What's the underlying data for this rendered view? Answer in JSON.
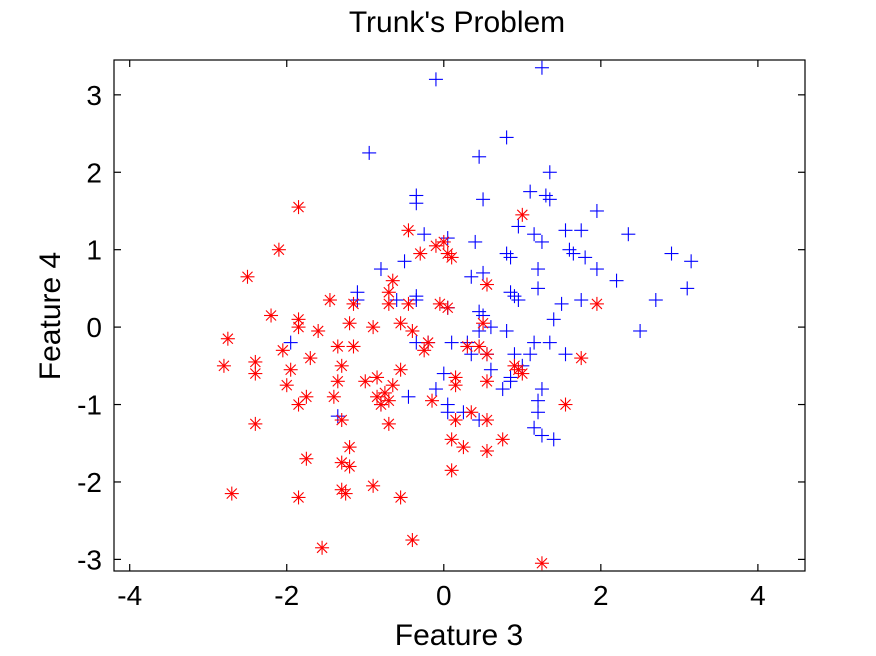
{
  "chart_data": {
    "type": "scatter",
    "title": "Trunk's Problem",
    "xlabel": "Feature 3",
    "ylabel": "Feature 4",
    "xlim": [
      -4.2,
      4.6
    ],
    "ylim": [
      -3.15,
      3.45
    ],
    "xticks": [
      -4,
      -2,
      0,
      2,
      4
    ],
    "xtick_labels": [
      "-4",
      "-2",
      "0",
      "2",
      "4"
    ],
    "yticks": [
      -3,
      -2,
      -1,
      0,
      1,
      2,
      3
    ],
    "ytick_labels": [
      "-3",
      "-2",
      "-1",
      "0",
      "1",
      "2",
      "3"
    ],
    "grid": false,
    "box": true,
    "series": [
      {
        "marker": "plus",
        "color": "#0000ff",
        "points": [
          [
            -0.1,
            3.2
          ],
          [
            1.25,
            3.35
          ],
          [
            -0.95,
            2.25
          ],
          [
            0.8,
            2.45
          ],
          [
            0.45,
            2.2
          ],
          [
            1.35,
            2.0
          ],
          [
            1.1,
            1.75
          ],
          [
            1.3,
            1.7
          ],
          [
            1.35,
            1.65
          ],
          [
            0.5,
            1.65
          ],
          [
            1.95,
            1.5
          ],
          [
            -0.35,
            1.7
          ],
          [
            -0.35,
            1.6
          ],
          [
            0.95,
            1.3
          ],
          [
            1.55,
            1.25
          ],
          [
            1.75,
            1.25
          ],
          [
            2.35,
            1.2
          ],
          [
            1.15,
            1.2
          ],
          [
            -0.25,
            1.2
          ],
          [
            0.05,
            1.15
          ],
          [
            0.4,
            1.1
          ],
          [
            1.25,
            1.1
          ],
          [
            1.6,
            1.0
          ],
          [
            1.65,
            0.95
          ],
          [
            0.8,
            0.95
          ],
          [
            0.85,
            0.9
          ],
          [
            1.8,
            0.9
          ],
          [
            2.9,
            0.95
          ],
          [
            3.15,
            0.85
          ],
          [
            -0.5,
            0.85
          ],
          [
            1.2,
            0.75
          ],
          [
            -0.8,
            0.75
          ],
          [
            0.5,
            0.7
          ],
          [
            0.35,
            0.65
          ],
          [
            1.95,
            0.75
          ],
          [
            2.2,
            0.6
          ],
          [
            1.2,
            0.5
          ],
          [
            3.1,
            0.5
          ],
          [
            -0.35,
            0.4
          ],
          [
            0.9,
            0.4
          ],
          [
            0.95,
            0.35
          ],
          [
            1.75,
            0.35
          ],
          [
            2.7,
            0.35
          ],
          [
            -1.1,
            0.35
          ],
          [
            -0.6,
            0.35
          ],
          [
            0.85,
            0.45
          ],
          [
            1.5,
            0.3
          ],
          [
            1.4,
            0.1
          ],
          [
            0.5,
            0.15
          ],
          [
            0.45,
            0.2
          ],
          [
            0.6,
            0.0
          ],
          [
            -0.35,
            0.35
          ],
          [
            0.05,
            0.25
          ],
          [
            0.45,
            -0.05
          ],
          [
            0.3,
            -0.2
          ],
          [
            1.15,
            -0.2
          ],
          [
            1.35,
            -0.2
          ],
          [
            0.55,
            -0.35
          ],
          [
            0.9,
            -0.35
          ],
          [
            1.0,
            -0.5
          ],
          [
            1.55,
            -0.35
          ],
          [
            0.1,
            -0.2
          ],
          [
            -0.35,
            -0.2
          ],
          [
            -0.2,
            -0.2
          ],
          [
            2.5,
            -0.05
          ],
          [
            1.1,
            -0.35
          ],
          [
            0.35,
            -0.35
          ],
          [
            0.6,
            -0.55
          ],
          [
            0.85,
            -0.7
          ],
          [
            1.25,
            -0.8
          ],
          [
            0.85,
            -0.65
          ],
          [
            0.0,
            -0.6
          ],
          [
            0.75,
            -0.8
          ],
          [
            -0.1,
            -0.8
          ],
          [
            0.05,
            -1.0
          ],
          [
            -0.8,
            -1.0
          ],
          [
            -0.45,
            -0.9
          ],
          [
            1.2,
            -0.95
          ],
          [
            1.2,
            -1.1
          ],
          [
            0.05,
            -1.1
          ],
          [
            0.25,
            -1.1
          ],
          [
            0.45,
            -1.2
          ],
          [
            1.15,
            -1.3
          ],
          [
            1.25,
            -1.4
          ],
          [
            -1.35,
            -1.15
          ],
          [
            1.4,
            -1.45
          ],
          [
            -1.95,
            -0.2
          ],
          [
            -1.1,
            0.45
          ],
          [
            0.8,
            -0.05
          ]
        ]
      },
      {
        "marker": "asterisk",
        "color": "#ff0000",
        "points": [
          [
            -1.85,
            1.55
          ],
          [
            -2.1,
            1.0
          ],
          [
            -2.5,
            0.65
          ],
          [
            -0.45,
            1.25
          ],
          [
            0.0,
            1.1
          ],
          [
            -0.1,
            1.05
          ],
          [
            -0.3,
            0.95
          ],
          [
            0.1,
            0.9
          ],
          [
            1.0,
            1.45
          ],
          [
            0.55,
            0.55
          ],
          [
            -0.65,
            0.6
          ],
          [
            -0.7,
            0.45
          ],
          [
            -2.2,
            0.15
          ],
          [
            -1.85,
            0.1
          ],
          [
            -1.45,
            0.35
          ],
          [
            -1.15,
            0.3
          ],
          [
            -0.7,
            0.3
          ],
          [
            -0.45,
            0.3
          ],
          [
            -0.05,
            0.3
          ],
          [
            0.05,
            0.25
          ],
          [
            -1.85,
            0.0
          ],
          [
            -2.05,
            -0.3
          ],
          [
            -2.75,
            -0.15
          ],
          [
            -1.7,
            -0.4
          ],
          [
            -1.6,
            -0.05
          ],
          [
            -1.2,
            0.05
          ],
          [
            -0.9,
            0.0
          ],
          [
            -0.55,
            0.05
          ],
          [
            -0.4,
            -0.05
          ],
          [
            0.5,
            0.05
          ],
          [
            -1.35,
            -0.25
          ],
          [
            -1.15,
            -0.25
          ],
          [
            -0.2,
            -0.2
          ],
          [
            -0.25,
            -0.3
          ],
          [
            0.3,
            -0.25
          ],
          [
            0.45,
            -0.25
          ],
          [
            0.55,
            -0.35
          ],
          [
            -2.4,
            -0.45
          ],
          [
            -2.8,
            -0.5
          ],
          [
            -2.4,
            -0.6
          ],
          [
            -1.95,
            -0.55
          ],
          [
            -2.0,
            -0.75
          ],
          [
            -1.3,
            -0.5
          ],
          [
            -1.35,
            -0.7
          ],
          [
            -1.0,
            -0.7
          ],
          [
            -0.85,
            -0.65
          ],
          [
            -0.65,
            -0.75
          ],
          [
            -0.55,
            -0.55
          ],
          [
            0.15,
            -0.65
          ],
          [
            0.15,
            -0.75
          ],
          [
            0.95,
            -0.55
          ],
          [
            1.0,
            -0.6
          ],
          [
            0.55,
            -0.7
          ],
          [
            -1.75,
            -0.9
          ],
          [
            -1.85,
            -1.0
          ],
          [
            -1.4,
            -0.9
          ],
          [
            -0.85,
            -0.9
          ],
          [
            -0.8,
            -1.0
          ],
          [
            -0.75,
            -0.85
          ],
          [
            -0.15,
            -0.95
          ],
          [
            0.15,
            -1.2
          ],
          [
            0.35,
            -1.1
          ],
          [
            0.55,
            -1.2
          ],
          [
            1.55,
            -1.0
          ],
          [
            1.75,
            -0.4
          ],
          [
            1.95,
            0.3
          ],
          [
            -2.4,
            -1.25
          ],
          [
            -1.3,
            -1.2
          ],
          [
            -0.7,
            -1.25
          ],
          [
            0.1,
            -1.45
          ],
          [
            0.25,
            -1.55
          ],
          [
            0.75,
            -1.45
          ],
          [
            0.55,
            -1.6
          ],
          [
            -1.2,
            -1.55
          ],
          [
            -1.75,
            -1.7
          ],
          [
            -1.3,
            -1.75
          ],
          [
            -1.2,
            -1.8
          ],
          [
            0.1,
            -1.85
          ],
          [
            -2.7,
            -2.15
          ],
          [
            -1.85,
            -2.2
          ],
          [
            -1.3,
            -2.1
          ],
          [
            -1.25,
            -2.15
          ],
          [
            -0.9,
            -2.05
          ],
          [
            -0.55,
            -2.2
          ],
          [
            -1.55,
            -2.85
          ],
          [
            -0.4,
            -2.75
          ],
          [
            1.25,
            -3.05
          ],
          [
            0.05,
            0.95
          ],
          [
            -0.7,
            -0.95
          ],
          [
            0.9,
            -0.5
          ]
        ]
      }
    ]
  }
}
